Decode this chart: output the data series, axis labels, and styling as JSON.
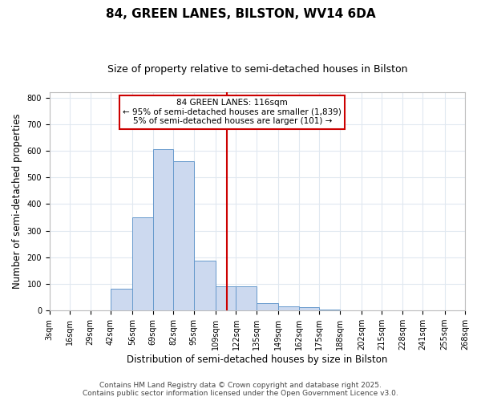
{
  "title": "84, GREEN LANES, BILSTON, WV14 6DA",
  "subtitle": "Size of property relative to semi-detached houses in Bilston",
  "xlabel": "Distribution of semi-detached houses by size in Bilston",
  "ylabel": "Number of semi-detached properties",
  "footer_line1": "Contains HM Land Registry data © Crown copyright and database right 2025.",
  "footer_line2": "Contains public sector information licensed under the Open Government Licence v3.0.",
  "bin_edges": [
    3,
    16,
    29,
    42,
    56,
    69,
    82,
    95,
    109,
    122,
    135,
    149,
    162,
    175,
    188,
    202,
    215,
    228,
    241,
    255,
    268
  ],
  "bin_heights": [
    1,
    1,
    0,
    83,
    350,
    607,
    560,
    188,
    91,
    91,
    28,
    17,
    14,
    5,
    1,
    0,
    1,
    0,
    1,
    1
  ],
  "bar_facecolor": "#ccd9ef",
  "bar_edgecolor": "#6699cc",
  "vline_x": 116,
  "vline_color": "#cc0000",
  "annotation_title": "84 GREEN LANES: 116sqm",
  "annotation_line2": "← 95% of semi-detached houses are smaller (1,839)",
  "annotation_line3": "5% of semi-detached houses are larger (101) →",
  "annotation_box_edgecolor": "#cc0000",
  "ylim": [
    0,
    820
  ],
  "yticks": [
    0,
    100,
    200,
    300,
    400,
    500,
    600,
    700,
    800
  ],
  "bg_color": "#ffffff",
  "plot_bg_color": "#ffffff",
  "grid_color": "#e0e8f0",
  "title_fontsize": 11,
  "subtitle_fontsize": 9,
  "axis_label_fontsize": 8.5,
  "tick_fontsize": 7,
  "footer_fontsize": 6.5
}
